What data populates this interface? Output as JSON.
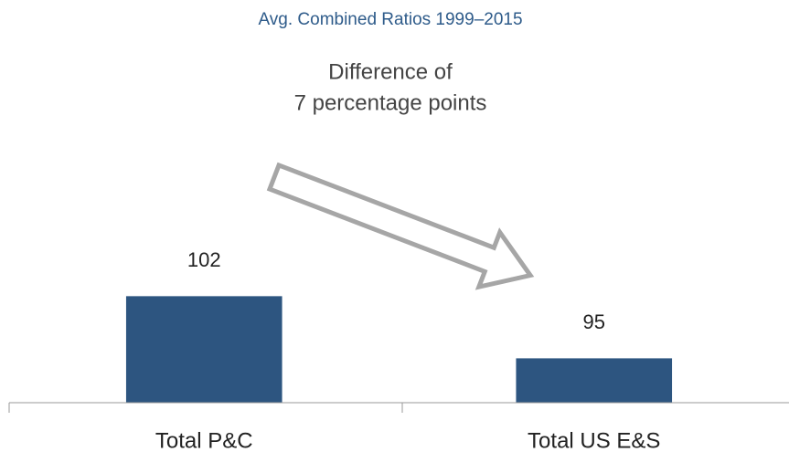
{
  "chart_data": {
    "type": "bar",
    "title": "Avg. Combined Ratios 1999–2015",
    "annotation": [
      "Difference of",
      "7 percentage points"
    ],
    "categories": [
      "Total P&C",
      "Total US E&S"
    ],
    "values": [
      102,
      95
    ],
    "color": "#2d5580",
    "ylim": [
      90,
      115
    ]
  }
}
